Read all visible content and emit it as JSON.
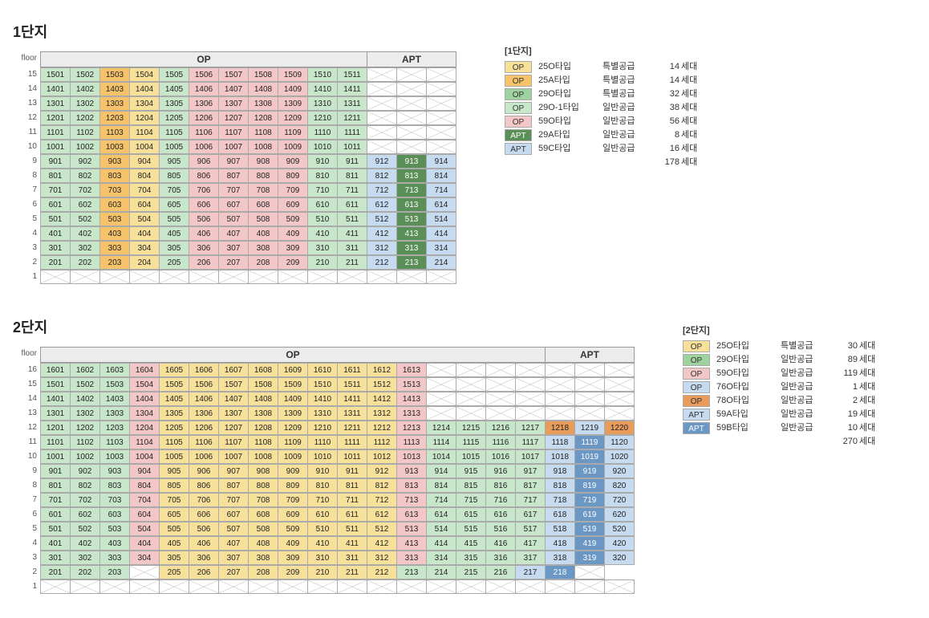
{
  "colors": {
    "g_light": "#c8e6c9",
    "g_mid": "#9ed39f",
    "g_dark": "#5a8f58",
    "orange": "#f6c36b",
    "yellow": "#f7e09a",
    "pink": "#f3c7c7",
    "blue_l": "#c6daf0",
    "blue_d": "#6b97c5",
    "o_deep": "#e89c5b",
    "hdr": "#ececec"
  },
  "complex1": {
    "title": "1단지",
    "floor_label": "floor",
    "header_groups": [
      {
        "label": "OP",
        "span": 11
      },
      {
        "label": "APT",
        "span": 3
      }
    ],
    "lines": [
      14,
      14,
      14,
      14,
      14,
      14,
      14,
      14,
      14,
      14,
      14,
      14,
      14,
      14,
      14
    ],
    "floors_desc": [
      15,
      14,
      13,
      12,
      11,
      10,
      9,
      8,
      7,
      6,
      5,
      4,
      3,
      2,
      1
    ],
    "apt_floors_min": 2,
    "apt_floors_max": 9,
    "col_colors_op": [
      "g_light",
      "g_light",
      "orange",
      "yellow",
      "g_light",
      "pink",
      "pink",
      "pink",
      "pink",
      "g_light",
      "g_light"
    ],
    "col_colors_apt": [
      "blue_l",
      "g_dark",
      "blue_l"
    ],
    "legend_title": "[1단지]",
    "legend": [
      {
        "sw": "yellow",
        "tag": "OP",
        "type": "25O타입",
        "supply": "특별공급",
        "count": 14
      },
      {
        "sw": "orange",
        "tag": "OP",
        "type": "25A타입",
        "supply": "특별공급",
        "count": 14
      },
      {
        "sw": "g_mid",
        "tag": "OP",
        "type": "29O타입",
        "supply": "특별공급",
        "count": 32
      },
      {
        "sw": "g_light",
        "tag": "OP",
        "type": "29O-1타입",
        "supply": "일반공급",
        "count": 38
      },
      {
        "sw": "pink",
        "tag": "OP",
        "type": "59O타입",
        "supply": "일반공급",
        "count": 56
      },
      {
        "sw": "g_dark",
        "tag": "APT",
        "type": "29A타입",
        "supply": "일반공급",
        "count": 8
      },
      {
        "sw": "blue_l",
        "tag": "APT",
        "type": "59C타입",
        "supply": "일반공급",
        "count": 16
      }
    ],
    "legend_total": 178,
    "unit_suffix": "세대"
  },
  "complex2": {
    "title": "2단지",
    "floor_label": "floor",
    "header_groups": [
      {
        "label": "OP",
        "span": 17
      },
      {
        "label": "APT",
        "span": 3
      }
    ],
    "floors_desc": [
      16,
      15,
      14,
      13,
      12,
      11,
      10,
      9,
      8,
      7,
      6,
      5,
      4,
      3,
      2,
      1
    ],
    "col_colors_op1": [
      "g_light",
      "g_light",
      "g_light",
      "pink",
      "yellow",
      "yellow",
      "yellow",
      "yellow",
      "yellow",
      "yellow",
      "yellow",
      "yellow",
      "pink"
    ],
    "col_colors_op2": [
      "g_light",
      "g_light",
      "g_light",
      "g_light"
    ],
    "col_colors_apt": [
      "blue_l",
      "blue_d",
      "blue_l"
    ],
    "row12_1820": [
      "o_deep",
      "blue_l",
      "o_deep"
    ],
    "op1_lines": 13,
    "op1_floor_min": 2,
    "op1_floor_max": 16,
    "op2_lines": 4,
    "op2_floor_min": 2,
    "op2_floor_max": 12,
    "apt_lines": 3,
    "apt_floor_min": 3,
    "apt_floor_max": 12,
    "floor2_skip_line": 4,
    "floor2_apt_lines": [
      17,
      18
    ],
    "legend_title": "[2단지]",
    "legend": [
      {
        "sw": "yellow",
        "tag": "OP",
        "type": "25O타입",
        "supply": "특별공급",
        "count": 30
      },
      {
        "sw": "g_mid",
        "tag": "OP",
        "type": "29O타입",
        "supply": "일반공급",
        "count": 89
      },
      {
        "sw": "pink",
        "tag": "OP",
        "type": "59O타입",
        "supply": "일반공급",
        "count": 119
      },
      {
        "sw": "blue_l",
        "tag": "OP",
        "type": "76O타입",
        "supply": "일반공급",
        "count": 1
      },
      {
        "sw": "o_deep",
        "tag": "OP",
        "type": "78O타입",
        "supply": "일반공급",
        "count": 2
      },
      {
        "sw": "blue_l",
        "tag": "APT",
        "type": "59A타입",
        "supply": "일반공급",
        "count": 19
      },
      {
        "sw": "blue_d",
        "tag": "APT",
        "type": "59B타입",
        "supply": "일반공급",
        "count": 10
      }
    ],
    "legend_total": 270,
    "unit_suffix": "세대"
  }
}
